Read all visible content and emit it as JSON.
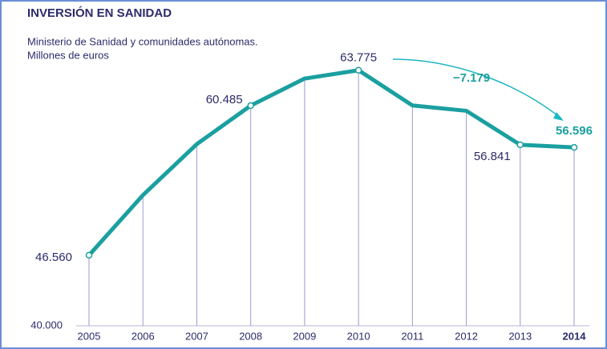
{
  "chart_data": {
    "type": "line",
    "title": "INVERSIÓN EN SANIDAD",
    "subtitle": [
      "Ministerio de Sanidad y comunidades autónomas.",
      "Millones de euros"
    ],
    "categories": [
      "2005",
      "2006",
      "2007",
      "2008",
      "2009",
      "2010",
      "2011",
      "2012",
      "2013",
      "2014"
    ],
    "series": [
      {
        "name": "Inversión en sanidad",
        "color": "#1b9fa0",
        "values": [
          46560,
          52150,
          56900,
          60485,
          63000,
          63775,
          60500,
          60000,
          56841,
          56596
        ],
        "value_labels": [
          "46.560",
          null,
          null,
          "60.485",
          null,
          "63.775",
          null,
          null,
          "56.841",
          "56.596"
        ]
      }
    ],
    "annotation": "−7.179",
    "ylim": [
      40000,
      68000
    ],
    "yticks": [
      {
        "value": 40000,
        "label": "40.000"
      }
    ]
  }
}
